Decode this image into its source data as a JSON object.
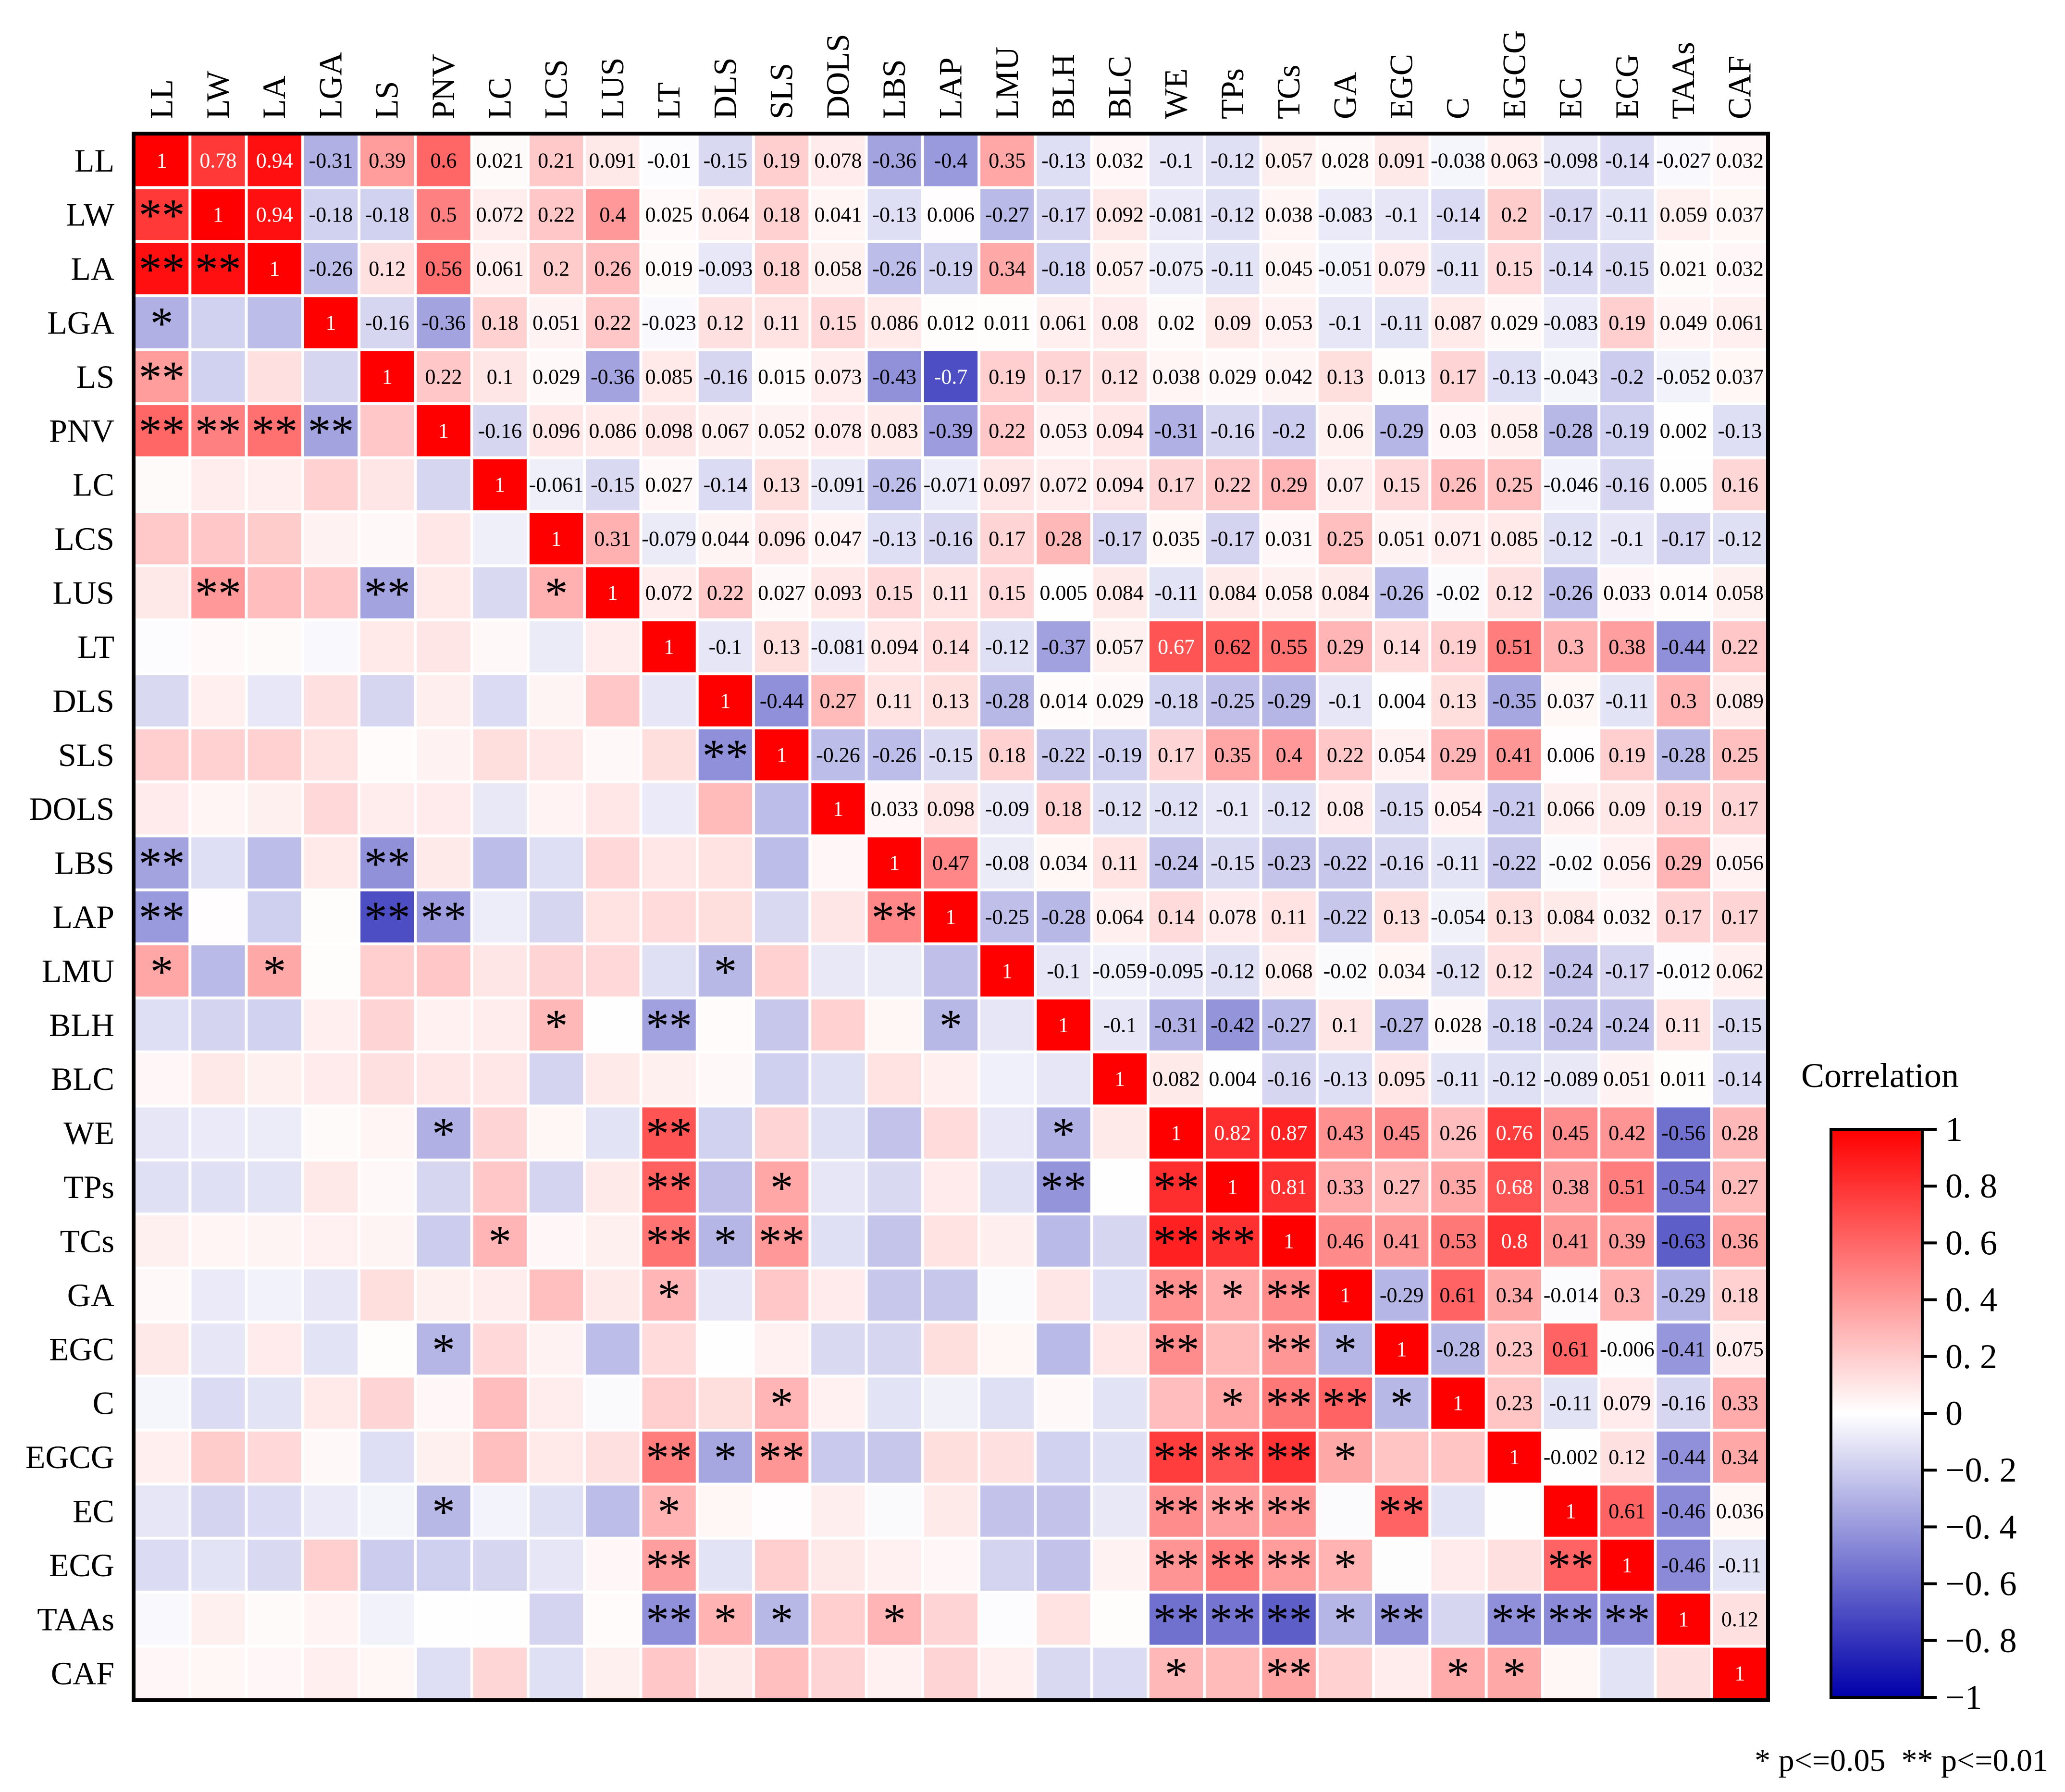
{
  "chart_data": {
    "type": "heatmap",
    "variables": [
      "LL",
      "LW",
      "LA",
      "LGA",
      "LS",
      "PNV",
      "LC",
      "LCS",
      "LUS",
      "LT",
      "DLS",
      "SLS",
      "DOLS",
      "LBS",
      "LAP",
      "LMU",
      "BLH",
      "BLC",
      "WE",
      "TPs",
      "TCs",
      "GA",
      "EGC",
      "C",
      "EGCG",
      "EC",
      "ECG",
      "TAAs",
      "CAF"
    ],
    "upper_values_text": [
      [
        "1",
        "0.78",
        "0.94",
        "-0.31",
        "0.39",
        "0.6",
        "0.021",
        "0.21",
        "0.091",
        "-0.01",
        "-0.15",
        "0.19",
        "0.078",
        "-0.36",
        "-0.4",
        "0.35",
        "-0.13",
        "0.032",
        "-0.1",
        "-0.12",
        "0.057",
        "0.028",
        "0.091",
        "-0.038",
        "0.063",
        "-0.098",
        "-0.14",
        "-0.027",
        "0.032"
      ],
      [
        "1",
        "0.94",
        "-0.18",
        "-0.18",
        "0.5",
        "0.072",
        "0.22",
        "0.4",
        "0.025",
        "0.064",
        "0.18",
        "0.041",
        "-0.13",
        "0.006",
        "-0.27",
        "-0.17",
        "0.092",
        "-0.081",
        "-0.12",
        "0.038",
        "-0.083",
        "-0.1",
        "-0.14",
        "0.2",
        "-0.17",
        "-0.11",
        "0.059",
        "0.037"
      ],
      [
        "1",
        "-0.26",
        "0.12",
        "0.56",
        "0.061",
        "0.2",
        "0.26",
        "0.019",
        "-0.093",
        "0.18",
        "0.058",
        "-0.26",
        "-0.19",
        "0.34",
        "-0.18",
        "0.057",
        "-0.075",
        "-0.11",
        "0.045",
        "-0.051",
        "0.079",
        "-0.11",
        "0.15",
        "-0.14",
        "-0.15",
        "0.021",
        "0.032"
      ],
      [
        "1",
        "-0.16",
        "-0.36",
        "0.18",
        "0.051",
        "0.22",
        "-0.023",
        "0.12",
        "0.11",
        "0.15",
        "0.086",
        "0.012",
        "0.011",
        "0.061",
        "0.08",
        "0.02",
        "0.09",
        "0.053",
        "-0.1",
        "-0.11",
        "0.087",
        "0.029",
        "-0.083",
        "0.19",
        "0.049",
        "0.061"
      ],
      [
        "1",
        "0.22",
        "0.1",
        "0.029",
        "-0.36",
        "0.085",
        "-0.16",
        "0.015",
        "0.073",
        "-0.43",
        "-0.7",
        "0.19",
        "0.17",
        "0.12",
        "0.038",
        "0.029",
        "0.042",
        "0.13",
        "0.013",
        "0.17",
        "-0.13",
        "-0.043",
        "-0.2",
        "-0.052",
        "0.037"
      ],
      [
        "1",
        "-0.16",
        "0.096",
        "0.086",
        "0.098",
        "0.067",
        "0.052",
        "0.078",
        "0.083",
        "-0.39",
        "0.22",
        "0.053",
        "0.094",
        "-0.31",
        "-0.16",
        "-0.2",
        "0.06",
        "-0.29",
        "0.03",
        "0.058",
        "-0.28",
        "-0.19",
        "0.002",
        "-0.13"
      ],
      [
        "1",
        "-0.061",
        "-0.15",
        "0.027",
        "-0.14",
        "0.13",
        "-0.091",
        "-0.26",
        "-0.071",
        "0.097",
        "0.072",
        "0.094",
        "0.17",
        "0.22",
        "0.29",
        "0.07",
        "0.15",
        "0.26",
        "0.25",
        "-0.046",
        "-0.16",
        "0.005",
        "0.16"
      ],
      [
        "1",
        "0.31",
        "-0.079",
        "0.044",
        "0.096",
        "0.047",
        "-0.13",
        "-0.16",
        "0.17",
        "0.28",
        "-0.17",
        "0.035",
        "-0.17",
        "0.031",
        "0.25",
        "0.051",
        "0.071",
        "0.085",
        "-0.12",
        "-0.1",
        "-0.17",
        "-0.12"
      ],
      [
        "1",
        "0.072",
        "0.22",
        "0.027",
        "0.093",
        "0.15",
        "0.11",
        "0.15",
        "0.005",
        "0.084",
        "-0.11",
        "0.084",
        "0.058",
        "0.084",
        "-0.26",
        "-0.02",
        "0.12",
        "-0.26",
        "0.033",
        "0.014",
        "0.058"
      ],
      [
        "1",
        "-0.1",
        "0.13",
        "-0.081",
        "0.094",
        "0.14",
        "-0.12",
        "-0.37",
        "0.057",
        "0.67",
        "0.62",
        "0.55",
        "0.29",
        "0.14",
        "0.19",
        "0.51",
        "0.3",
        "0.38",
        "-0.44",
        "0.22"
      ],
      [
        "1",
        "-0.44",
        "0.27",
        "0.11",
        "0.13",
        "-0.28",
        "0.014",
        "0.029",
        "-0.18",
        "-0.25",
        "-0.29",
        "-0.1",
        "0.004",
        "0.13",
        "-0.35",
        "0.037",
        "-0.11",
        "0.3",
        "0.089"
      ],
      [
        "1",
        "-0.26",
        "-0.26",
        "-0.15",
        "0.18",
        "-0.22",
        "-0.19",
        "0.17",
        "0.35",
        "0.4",
        "0.22",
        "0.054",
        "0.29",
        "0.41",
        "0.006",
        "0.19",
        "-0.28",
        "0.25"
      ],
      [
        "1",
        "0.033",
        "0.098",
        "-0.09",
        "0.18",
        "-0.12",
        "-0.12",
        "-0.1",
        "-0.12",
        "0.08",
        "-0.15",
        "0.054",
        "-0.21",
        "0.066",
        "0.09",
        "0.19",
        "0.17"
      ],
      [
        "1",
        "0.47",
        "-0.08",
        "0.034",
        "0.11",
        "-0.24",
        "-0.15",
        "-0.23",
        "-0.22",
        "-0.16",
        "-0.11",
        "-0.22",
        "-0.02",
        "0.056",
        "0.29",
        "0.056"
      ],
      [
        "1",
        "-0.25",
        "-0.28",
        "0.064",
        "0.14",
        "0.078",
        "0.11",
        "-0.22",
        "0.13",
        "-0.054",
        "0.13",
        "0.084",
        "0.032",
        "0.17",
        "0.17"
      ],
      [
        "1",
        "-0.1",
        "-0.059",
        "-0.095",
        "-0.12",
        "0.068",
        "-0.02",
        "0.034",
        "-0.12",
        "0.12",
        "-0.24",
        "-0.17",
        "-0.012",
        "0.062"
      ],
      [
        "1",
        "-0.1",
        "-0.31",
        "-0.42",
        "-0.27",
        "0.1",
        "-0.27",
        "0.028",
        "-0.18",
        "-0.24",
        "-0.24",
        "0.11",
        "-0.15"
      ],
      [
        "1",
        "0.082",
        "0.004",
        "-0.16",
        "-0.13",
        "0.095",
        "-0.11",
        "-0.12",
        "-0.089",
        "0.051",
        "0.011",
        "-0.14"
      ],
      [
        "1",
        "0.82",
        "0.87",
        "0.43",
        "0.45",
        "0.26",
        "0.76",
        "0.45",
        "0.42",
        "-0.56",
        "0.28"
      ],
      [
        "1",
        "0.81",
        "0.33",
        "0.27",
        "0.35",
        "0.68",
        "0.38",
        "0.51",
        "-0.54",
        "0.27"
      ],
      [
        "1",
        "0.46",
        "0.41",
        "0.53",
        "0.8",
        "0.41",
        "0.39",
        "-0.63",
        "0.36"
      ],
      [
        "1",
        "-0.29",
        "0.61",
        "0.34",
        "-0.014",
        "0.3",
        "-0.29",
        "0.18"
      ],
      [
        "1",
        "-0.28",
        "0.23",
        "0.61",
        "-0.006",
        "-0.41",
        "0.075"
      ],
      [
        "1",
        "0.23",
        "-0.11",
        "0.079",
        "-0.16",
        "0.33"
      ],
      [
        "1",
        "-0.002",
        "0.12",
        "-0.44",
        "0.34"
      ],
      [
        "1",
        "0.61",
        "-0.46",
        "0.036"
      ],
      [
        "1",
        "-0.46",
        "-0.11"
      ],
      [
        "1",
        "0.12"
      ],
      [
        "1"
      ]
    ],
    "significance": [
      [
        "LW",
        "LL",
        "**"
      ],
      [
        "LA",
        "LL",
        "**"
      ],
      [
        "LA",
        "LW",
        "**"
      ],
      [
        "LGA",
        "LL",
        "*"
      ],
      [
        "LS",
        "LL",
        "**"
      ],
      [
        "PNV",
        "LL",
        "**"
      ],
      [
        "PNV",
        "LW",
        "**"
      ],
      [
        "PNV",
        "LA",
        "**"
      ],
      [
        "PNV",
        "LGA",
        "**"
      ],
      [
        "LUS",
        "LW",
        "**"
      ],
      [
        "LUS",
        "LS",
        "**"
      ],
      [
        "LUS",
        "LCS",
        "*"
      ],
      [
        "SLS",
        "DLS",
        "**"
      ],
      [
        "LBS",
        "LL",
        "**"
      ],
      [
        "LBS",
        "LS",
        "**"
      ],
      [
        "LAP",
        "LL",
        "**"
      ],
      [
        "LAP",
        "LS",
        "**"
      ],
      [
        "LAP",
        "PNV",
        "**"
      ],
      [
        "LAP",
        "LBS",
        "**"
      ],
      [
        "LMU",
        "LL",
        "*"
      ],
      [
        "LMU",
        "LA",
        "*"
      ],
      [
        "LMU",
        "DLS",
        "*"
      ],
      [
        "BLH",
        "LCS",
        "*"
      ],
      [
        "BLH",
        "LT",
        "**"
      ],
      [
        "BLH",
        "LAP",
        "*"
      ],
      [
        "WE",
        "PNV",
        "*"
      ],
      [
        "WE",
        "LT",
        "**"
      ],
      [
        "WE",
        "BLH",
        "*"
      ],
      [
        "TPs",
        "LT",
        "**"
      ],
      [
        "TPs",
        "SLS",
        "*"
      ],
      [
        "TPs",
        "BLH",
        "**"
      ],
      [
        "TPs",
        "WE",
        "**"
      ],
      [
        "TCs",
        "LC",
        "*"
      ],
      [
        "TCs",
        "LT",
        "**"
      ],
      [
        "TCs",
        "DLS",
        "*"
      ],
      [
        "TCs",
        "SLS",
        "**"
      ],
      [
        "TCs",
        "WE",
        "**"
      ],
      [
        "TCs",
        "TPs",
        "**"
      ],
      [
        "GA",
        "LT",
        "*"
      ],
      [
        "GA",
        "WE",
        "**"
      ],
      [
        "GA",
        "TPs",
        "*"
      ],
      [
        "GA",
        "TCs",
        "**"
      ],
      [
        "EGC",
        "PNV",
        "*"
      ],
      [
        "EGC",
        "WE",
        "**"
      ],
      [
        "EGC",
        "TCs",
        "**"
      ],
      [
        "EGC",
        "GA",
        "*"
      ],
      [
        "C",
        "SLS",
        "*"
      ],
      [
        "C",
        "TPs",
        "*"
      ],
      [
        "C",
        "TCs",
        "**"
      ],
      [
        "C",
        "GA",
        "**"
      ],
      [
        "C",
        "EGC",
        "*"
      ],
      [
        "EGCG",
        "LT",
        "**"
      ],
      [
        "EGCG",
        "DLS",
        "*"
      ],
      [
        "EGCG",
        "SLS",
        "**"
      ],
      [
        "EGCG",
        "WE",
        "**"
      ],
      [
        "EGCG",
        "TPs",
        "**"
      ],
      [
        "EGCG",
        "TCs",
        "**"
      ],
      [
        "EGCG",
        "GA",
        "*"
      ],
      [
        "EC",
        "PNV",
        "*"
      ],
      [
        "EC",
        "LT",
        "*"
      ],
      [
        "EC",
        "WE",
        "**"
      ],
      [
        "EC",
        "TPs",
        "**"
      ],
      [
        "EC",
        "TCs",
        "**"
      ],
      [
        "EC",
        "EGC",
        "**"
      ],
      [
        "ECG",
        "LT",
        "**"
      ],
      [
        "ECG",
        "WE",
        "**"
      ],
      [
        "ECG",
        "TPs",
        "**"
      ],
      [
        "ECG",
        "TCs",
        "**"
      ],
      [
        "ECG",
        "GA",
        "*"
      ],
      [
        "ECG",
        "EC",
        "**"
      ],
      [
        "TAAs",
        "LT",
        "**"
      ],
      [
        "TAAs",
        "DLS",
        "*"
      ],
      [
        "TAAs",
        "SLS",
        "*"
      ],
      [
        "TAAs",
        "LBS",
        "*"
      ],
      [
        "TAAs",
        "WE",
        "**"
      ],
      [
        "TAAs",
        "TPs",
        "**"
      ],
      [
        "TAAs",
        "TCs",
        "**"
      ],
      [
        "TAAs",
        "GA",
        "*"
      ],
      [
        "TAAs",
        "EGC",
        "**"
      ],
      [
        "TAAs",
        "EGCG",
        "**"
      ],
      [
        "TAAs",
        "EC",
        "**"
      ],
      [
        "TAAs",
        "ECG",
        "**"
      ],
      [
        "CAF",
        "WE",
        "*"
      ],
      [
        "CAF",
        "TCs",
        "**"
      ],
      [
        "CAF",
        "C",
        "*"
      ],
      [
        "CAF",
        "EGCG",
        "*"
      ]
    ],
    "legend_title": "Correlation",
    "legend_ticks": [
      "1",
      "0. 8",
      "0. 6",
      "0. 4",
      "0. 2",
      "0",
      "−0. 2",
      "−0. 4",
      "−0. 6",
      "−0. 8",
      "−1"
    ],
    "value_range": [
      -1,
      1
    ],
    "footnote": "* p<=0.05  ** p<=0.01",
    "colors": {
      "positive": "#ff0000",
      "neutral": "#ffffff",
      "negative": "#0000aa",
      "grid_line": "#ffffff",
      "axis": "#000000"
    }
  }
}
